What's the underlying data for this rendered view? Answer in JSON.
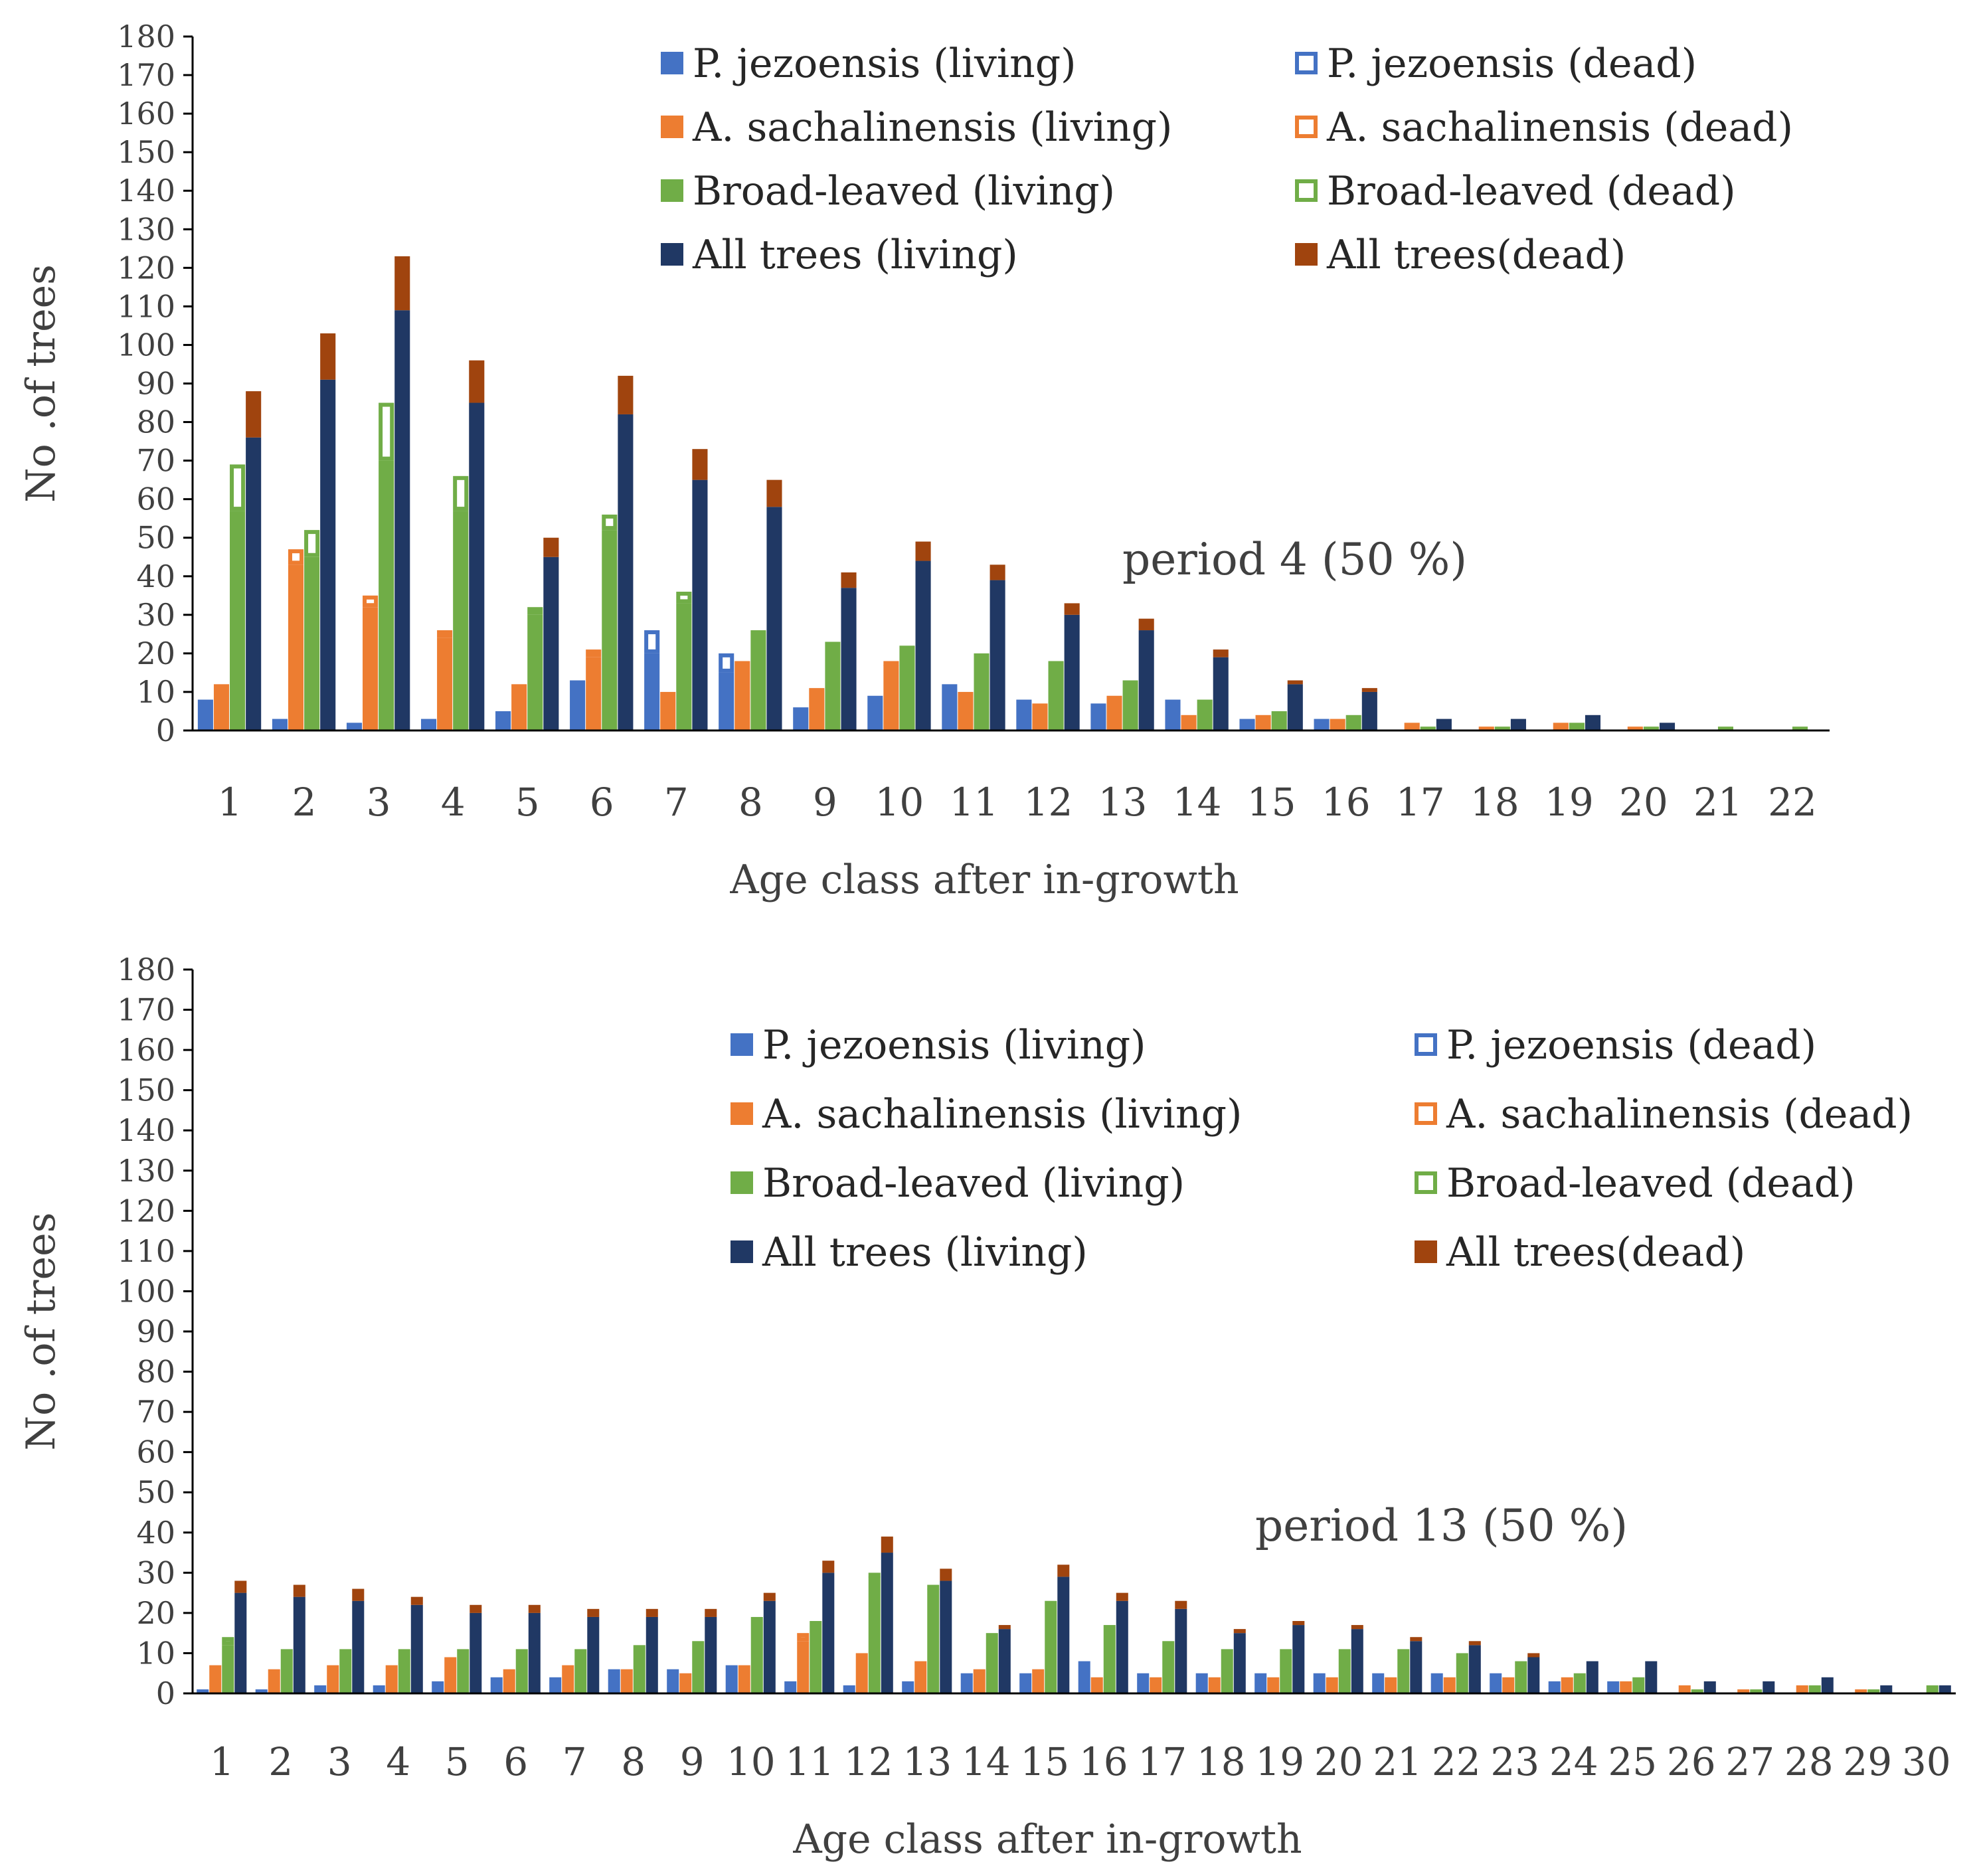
{
  "colors": {
    "pj": "#4472C4",
    "as": "#ED7D31",
    "bl": "#70AD47",
    "all_living": "#203864",
    "all_dead": "#A0440E",
    "axis": "#000000",
    "text": "#404040"
  },
  "chart_data": [
    {
      "type": "bar",
      "title": "",
      "annotation": "period 4 (50 %)",
      "xlabel": "Age class after in-growth",
      "ylabel": "No .of trees",
      "ylim": [
        0,
        180
      ],
      "yticks": [
        0,
        10,
        20,
        30,
        40,
        50,
        60,
        70,
        80,
        90,
        100,
        110,
        120,
        130,
        140,
        150,
        160,
        170,
        180
      ],
      "grid": false,
      "legend_position": "top-right",
      "categories": [
        "1",
        "2",
        "3",
        "4",
        "5",
        "6",
        "7",
        "8",
        "9",
        "10",
        "11",
        "12",
        "13",
        "14",
        "15",
        "16",
        "17",
        "18",
        "19",
        "20",
        "21",
        "22"
      ],
      "series": [
        {
          "name": "P. jezoensis  (living)",
          "key": "pj_living",
          "values": [
            8,
            3,
            2,
            3,
            5,
            13,
            20,
            15,
            6,
            9,
            12,
            8,
            7,
            8,
            3,
            3,
            0,
            0,
            0,
            0,
            0,
            0
          ]
        },
        {
          "name": "P. jezoensis  (dead)",
          "key": "pj_dead",
          "values": [
            0,
            0,
            0,
            0,
            0,
            0,
            6,
            5,
            0,
            0,
            0,
            0,
            0,
            0,
            0,
            0,
            0,
            0,
            0,
            0,
            0,
            0
          ]
        },
        {
          "name": "A. sachalinensis  (living)",
          "key": "as_living",
          "values": [
            12,
            43,
            32,
            24,
            12,
            19,
            10,
            18,
            11,
            17,
            10,
            7,
            9,
            4,
            4,
            3,
            2,
            1,
            2,
            1,
            0,
            0
          ]
        },
        {
          "name": "A. sachalinensis (dead)",
          "key": "as_dead",
          "values": [
            0,
            4,
            3,
            2,
            0,
            2,
            0,
            0,
            0,
            1,
            0,
            0,
            0,
            0,
            0,
            0,
            0,
            0,
            0,
            0,
            0,
            0
          ]
        },
        {
          "name": "Broad-leaved (living)",
          "key": "bl_living",
          "values": [
            57,
            45,
            70,
            57,
            30,
            52,
            33,
            26,
            23,
            22,
            20,
            18,
            13,
            8,
            5,
            4,
            1,
            1,
            2,
            1,
            1,
            1
          ]
        },
        {
          "name": "Broad-leaved (dead)",
          "key": "bl_dead",
          "values": [
            12,
            7,
            15,
            9,
            2,
            4,
            3,
            0,
            0,
            0,
            0,
            0,
            0,
            0,
            0,
            0,
            0,
            0,
            0,
            0,
            0,
            0
          ]
        },
        {
          "name": "All trees (living)",
          "key": "all_living",
          "values": [
            76,
            91,
            109,
            85,
            45,
            82,
            65,
            58,
            37,
            44,
            39,
            30,
            26,
            19,
            12,
            10,
            3,
            3,
            4,
            2,
            0,
            0
          ]
        },
        {
          "name": "All trees(dead)",
          "key": "all_dead",
          "values": [
            12,
            12,
            14,
            11,
            5,
            10,
            8,
            7,
            4,
            5,
            4,
            3,
            3,
            2,
            1,
            1,
            0,
            0,
            0,
            0,
            0,
            0
          ]
        }
      ]
    },
    {
      "type": "bar",
      "title": "",
      "annotation": "period 13 (50 %)",
      "xlabel": "Age class after in-growth",
      "ylabel": "No .of trees",
      "ylim": [
        0,
        180
      ],
      "yticks": [
        0,
        10,
        20,
        30,
        40,
        50,
        60,
        70,
        80,
        90,
        100,
        110,
        120,
        130,
        140,
        150,
        160,
        170,
        180
      ],
      "grid": false,
      "legend_position": "top-right",
      "categories": [
        "1",
        "2",
        "3",
        "4",
        "5",
        "6",
        "7",
        "8",
        "9",
        "10",
        "11",
        "12",
        "13",
        "14",
        "15",
        "16",
        "17",
        "18",
        "19",
        "20",
        "21",
        "22",
        "23",
        "24",
        "25",
        "26",
        "27",
        "28",
        "29",
        "30"
      ],
      "series": [
        {
          "name": "P. jezoensis  (living)",
          "key": "pj_living",
          "values": [
            1,
            1,
            2,
            2,
            3,
            4,
            4,
            6,
            6,
            7,
            3,
            2,
            3,
            5,
            5,
            8,
            5,
            5,
            5,
            5,
            5,
            5,
            5,
            3,
            3,
            0,
            0,
            0,
            0,
            0
          ]
        },
        {
          "name": "P. jezoensis  (dead)",
          "key": "pj_dead",
          "values": [
            0,
            0,
            0,
            0,
            0,
            0,
            0,
            0,
            0,
            0,
            0,
            0,
            0,
            0,
            0,
            0,
            0,
            0,
            0,
            0,
            0,
            0,
            0,
            0,
            0,
            0,
            0,
            0,
            0,
            0
          ]
        },
        {
          "name": "A. sachalinensis  (living)",
          "key": "as_living",
          "values": [
            7,
            6,
            7,
            7,
            9,
            6,
            7,
            6,
            5,
            7,
            13,
            10,
            8,
            6,
            6,
            4,
            4,
            4,
            4,
            4,
            4,
            4,
            4,
            4,
            3,
            2,
            1,
            2,
            1,
            0
          ]
        },
        {
          "name": "A. sachalinensis (dead)",
          "key": "as_dead",
          "values": [
            0,
            0,
            0,
            0,
            0,
            0,
            0,
            0,
            0,
            0,
            2,
            0,
            0,
            0,
            0,
            0,
            0,
            0,
            0,
            0,
            0,
            0,
            0,
            0,
            0,
            0,
            0,
            0,
            0,
            0
          ]
        },
        {
          "name": "Broad-leaved (living)",
          "key": "bl_living",
          "values": [
            12,
            11,
            11,
            11,
            11,
            11,
            11,
            12,
            13,
            19,
            18,
            29,
            26,
            15,
            23,
            17,
            13,
            11,
            11,
            11,
            11,
            10,
            8,
            5,
            4,
            1,
            1,
            2,
            1,
            2
          ]
        },
        {
          "name": "Broad-leaved (dead)",
          "key": "bl_dead",
          "values": [
            2,
            0,
            0,
            0,
            0,
            0,
            0,
            0,
            0,
            0,
            0,
            1,
            1,
            0,
            0,
            0,
            0,
            0,
            0,
            0,
            0,
            0,
            0,
            0,
            0,
            0,
            0,
            0,
            0,
            0
          ]
        },
        {
          "name": "All trees (living)",
          "key": "all_living",
          "values": [
            25,
            24,
            23,
            22,
            20,
            20,
            19,
            19,
            19,
            23,
            30,
            35,
            28,
            16,
            29,
            23,
            21,
            15,
            17,
            16,
            13,
            12,
            9,
            8,
            8,
            3,
            3,
            4,
            2,
            2
          ]
        },
        {
          "name": "All trees(dead)",
          "key": "all_dead",
          "values": [
            3,
            3,
            3,
            2,
            2,
            2,
            2,
            2,
            2,
            2,
            3,
            4,
            3,
            1,
            3,
            2,
            2,
            1,
            1,
            1,
            1,
            1,
            1,
            0,
            0,
            0,
            0,
            0,
            0,
            0
          ]
        }
      ]
    }
  ]
}
